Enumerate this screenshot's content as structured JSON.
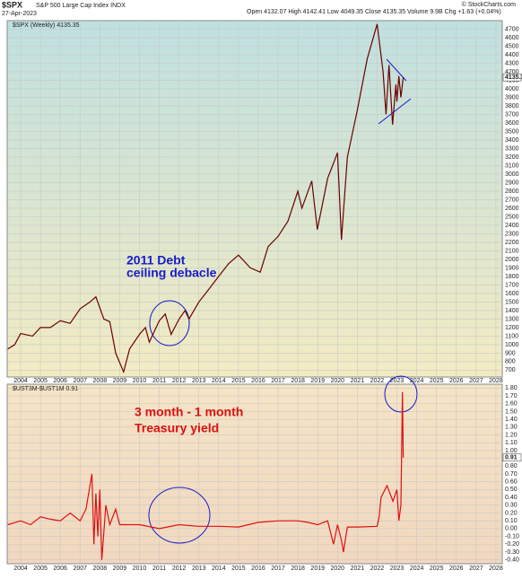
{
  "chart_data": [
    {
      "type": "line",
      "title": "$SPX",
      "subtitle": "S&P 500 Large Cap Index INDX",
      "date": "27-Apr-2023",
      "quote": "Open 4132.07  High 4142.41  Low 4049.35  Close 4135.35  Volume 9.9B  Chg +1.63 (+0.04%)",
      "source": "© StockCharts.com",
      "annotation": [
        "2011 Debt",
        "ceiling debacle"
      ],
      "last_label": "4135.35",
      "xlim": [
        2003.32,
        2028.32
      ],
      "xticks": [
        2004,
        2005,
        2006,
        2007,
        2008,
        2009,
        2010,
        2011,
        2012,
        2013,
        2014,
        2015,
        2016,
        2017,
        2018,
        2019,
        2020,
        2021,
        2022,
        2023,
        2024,
        2025,
        2026,
        2027,
        2028
      ],
      "ylim": [
        620,
        4800
      ],
      "yticks": [
        700,
        800,
        900,
        1000,
        1100,
        1200,
        1300,
        1400,
        1500,
        1600,
        1700,
        1800,
        1900,
        2000,
        2100,
        2200,
        2300,
        2400,
        2500,
        2600,
        2700,
        2800,
        2900,
        3000,
        3100,
        3200,
        3300,
        3400,
        3500,
        3600,
        3700,
        3800,
        3900,
        4000,
        4100,
        4200,
        4300,
        4400,
        4500,
        4600,
        4700
      ],
      "grid": true,
      "series": [
        {
          "name": "$SPX (Weekly) 4135.35",
          "color": "#6b0000",
          "x": [
            2003.35,
            2003.7,
            2004.0,
            2004.6,
            2005.0,
            2005.5,
            2006.0,
            2006.5,
            2007.0,
            2007.5,
            2007.8,
            2008.2,
            2008.5,
            2008.8,
            2009.2,
            2009.5,
            2010.0,
            2010.3,
            2010.5,
            2011.0,
            2011.3,
            2011.6,
            2012.0,
            2012.3,
            2012.5,
            2013.0,
            2013.5,
            2014.0,
            2014.5,
            2015.0,
            2015.6,
            2016.1,
            2016.5,
            2017.0,
            2017.5,
            2018.0,
            2018.2,
            2018.7,
            2018.98,
            2019.5,
            2020.0,
            2020.2,
            2020.5,
            2021.0,
            2021.5,
            2022.0,
            2022.3,
            2022.45,
            2022.6,
            2022.78,
            2022.95,
            2023.0,
            2023.1,
            2023.2,
            2023.32
          ],
          "values": [
            950,
            1000,
            1130,
            1100,
            1200,
            1200,
            1280,
            1250,
            1420,
            1500,
            1560,
            1300,
            1270,
            900,
            680,
            950,
            1120,
            1200,
            1030,
            1280,
            1360,
            1120,
            1300,
            1400,
            1300,
            1500,
            1650,
            1800,
            1950,
            2050,
            1900,
            1850,
            2150,
            2270,
            2450,
            2800,
            2600,
            2920,
            2350,
            2950,
            3250,
            2230,
            3200,
            3750,
            4350,
            4760,
            4200,
            3700,
            4280,
            3580,
            4050,
            3850,
            4150,
            3900,
            4135.35
          ]
        }
      ]
    },
    {
      "type": "line",
      "annotation": [
        "3 month - 1 month",
        "Treasury yield"
      ],
      "last_label": "0.91",
      "xlim": [
        2003.32,
        2028.32
      ],
      "xticks": [
        2004,
        2005,
        2006,
        2007,
        2008,
        2009,
        2010,
        2011,
        2012,
        2013,
        2014,
        2015,
        2016,
        2017,
        2018,
        2019,
        2020,
        2021,
        2022,
        2023,
        2024,
        2025,
        2026,
        2027,
        2028
      ],
      "ylim": [
        -0.45,
        1.85
      ],
      "yticks": [
        {
          "value": -0.4,
          "label": "-0.40"
        },
        {
          "value": -0.3,
          "label": "-0.30"
        },
        {
          "value": -0.2,
          "label": "-0.20"
        },
        {
          "value": -0.1,
          "label": "-0.10"
        },
        {
          "value": 0,
          "label": "0.00"
        },
        {
          "value": 0.1,
          "label": "0.10"
        },
        {
          "value": 0.2,
          "label": "0.20"
        },
        {
          "value": 0.3,
          "label": "0.30"
        },
        {
          "value": 0.4,
          "label": "0.40"
        },
        {
          "value": 0.5,
          "label": "0.50"
        },
        {
          "value": 0.6,
          "label": "0.60"
        },
        {
          "value": 0.7,
          "label": "0.70"
        },
        {
          "value": 0.8,
          "label": "0.80"
        },
        {
          "value": 0.9,
          "label": "0.90"
        },
        {
          "value": 1,
          "label": "1.00"
        },
        {
          "value": 1.1,
          "label": "1.10"
        },
        {
          "value": 1.2,
          "label": "1.20"
        },
        {
          "value": 1.3,
          "label": "1.30"
        },
        {
          "value": 1.4,
          "label": "1.40"
        },
        {
          "value": 1.5,
          "label": "1.50"
        },
        {
          "value": 1.6,
          "label": "1.60"
        },
        {
          "value": 1.7,
          "label": "1.70"
        },
        {
          "value": 1.8,
          "label": "1.80"
        }
      ],
      "grid": true,
      "series": [
        {
          "name": "$UST3M-$UST1M 0.91",
          "color": "#dd1111",
          "x": [
            2003.35,
            2004,
            2004.5,
            2005,
            2005.5,
            2006,
            2006.5,
            2007,
            2007.3,
            2007.6,
            2007.7,
            2007.8,
            2007.9,
            2008.0,
            2008.1,
            2008.3,
            2008.5,
            2008.8,
            2009.0,
            2009.5,
            2010,
            2011,
            2012,
            2013,
            2014,
            2015,
            2016,
            2017,
            2018,
            2018.5,
            2019,
            2019.5,
            2019.8,
            2020.0,
            2020.2,
            2020.3,
            2020.5,
            2021,
            2022,
            2022.1,
            2022.2,
            2022.5,
            2022.8,
            2023.0,
            2023.1,
            2023.2,
            2023.28,
            2023.32
          ],
          "values": [
            0.05,
            0.1,
            0.05,
            0.15,
            0.12,
            0.1,
            0.2,
            0.1,
            0.25,
            0.7,
            -0.2,
            0.45,
            -0.1,
            0.5,
            -0.4,
            0.3,
            0.05,
            0.25,
            0.05,
            0.05,
            0.05,
            0.0,
            0.05,
            0.03,
            0.03,
            0.02,
            0.08,
            0.1,
            0.1,
            0.08,
            0.05,
            0.1,
            -0.2,
            0.05,
            -0.15,
            -0.3,
            0.02,
            0.02,
            0.03,
            0.15,
            0.4,
            0.55,
            0.35,
            0.5,
            0.1,
            0.3,
            1.75,
            0.91
          ]
        }
      ]
    }
  ]
}
